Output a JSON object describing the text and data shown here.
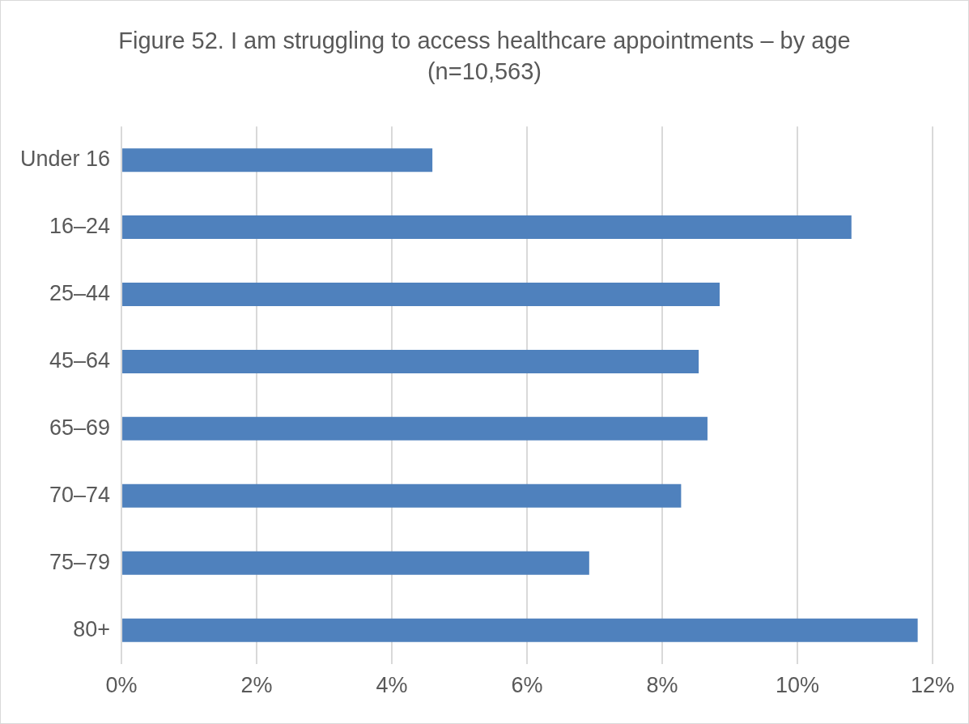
{
  "chart_data": {
    "type": "bar",
    "orientation": "horizontal",
    "title": "Figure 52. I am struggling to access healthcare appointments – by age (n=10,563)",
    "categories": [
      "Under 16",
      "16–24",
      "25–44",
      "45–64",
      "65–69",
      "70–74",
      "75–79",
      "80+"
    ],
    "values": [
      4.6,
      10.8,
      8.85,
      8.54,
      8.67,
      8.28,
      6.92,
      11.78
    ],
    "color": "#4f81bd",
    "xlim": [
      0,
      12
    ],
    "xticks": [
      {
        "value": 0,
        "label": "0%"
      },
      {
        "value": 2,
        "label": "2%"
      },
      {
        "value": 4,
        "label": "4%"
      },
      {
        "value": 6,
        "label": "6%"
      },
      {
        "value": 8,
        "label": "8%"
      },
      {
        "value": 10,
        "label": "10%"
      },
      {
        "value": 12,
        "label": "12%"
      }
    ],
    "grid": "x",
    "legend": false
  }
}
